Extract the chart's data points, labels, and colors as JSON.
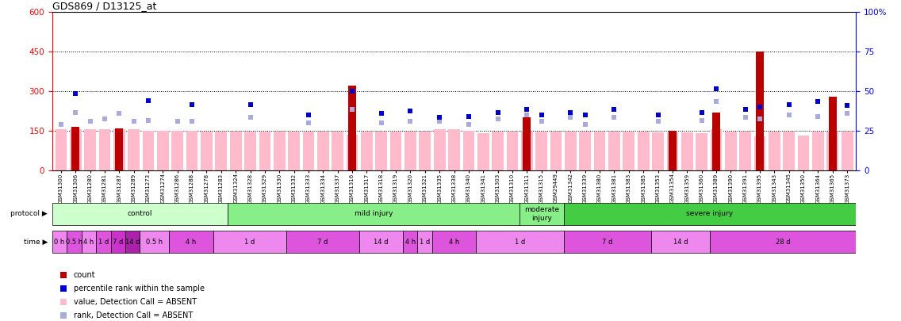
{
  "title": "GDS869 / D13125_at",
  "samples": [
    "GSM31300",
    "GSM31306",
    "GSM31280",
    "GSM31281",
    "GSM31287",
    "GSM31289",
    "GSM31273",
    "GSM31274",
    "GSM31286",
    "GSM31288",
    "GSM31278",
    "GSM31283",
    "GSM31324",
    "GSM31328",
    "GSM31329",
    "GSM31330",
    "GSM31332",
    "GSM31333",
    "GSM31334",
    "GSM31337",
    "GSM31316",
    "GSM31317",
    "GSM31318",
    "GSM31319",
    "GSM31320",
    "GSM31321",
    "GSM31335",
    "GSM31338",
    "GSM31340",
    "GSM31341",
    "GSM31303",
    "GSM31310",
    "GSM31311",
    "GSM31315",
    "GSM29449",
    "GSM31342",
    "GSM31339",
    "GSM31380",
    "GSM31381",
    "GSM31383",
    "GSM31385",
    "GSM31353",
    "GSM31354",
    "GSM31359",
    "GSM31360",
    "GSM31389",
    "GSM31390",
    "GSM31391",
    "GSM31395",
    "GSM31343",
    "GSM31345",
    "GSM31350",
    "GSM31364",
    "GSM31365",
    "GSM31373"
  ],
  "count_values": [
    0,
    165,
    0,
    0,
    160,
    0,
    0,
    0,
    0,
    0,
    0,
    0,
    0,
    0,
    0,
    0,
    0,
    0,
    0,
    0,
    320,
    0,
    0,
    0,
    0,
    0,
    0,
    0,
    0,
    0,
    0,
    0,
    200,
    0,
    0,
    0,
    0,
    0,
    0,
    0,
    0,
    0,
    150,
    0,
    0,
    220,
    0,
    0,
    450,
    0,
    0,
    0,
    0,
    280,
    0
  ],
  "percentile_values": [
    0,
    290,
    0,
    0,
    0,
    0,
    265,
    0,
    0,
    250,
    0,
    0,
    0,
    250,
    0,
    0,
    0,
    210,
    0,
    0,
    300,
    0,
    215,
    0,
    225,
    0,
    200,
    0,
    205,
    0,
    220,
    0,
    230,
    210,
    0,
    220,
    210,
    0,
    230,
    0,
    0,
    210,
    0,
    0,
    220,
    310,
    0,
    230,
    240,
    0,
    250,
    0,
    260,
    0,
    245
  ],
  "pink_bar_values": [
    155,
    155,
    155,
    155,
    155,
    155,
    150,
    150,
    150,
    150,
    148,
    148,
    148,
    148,
    148,
    148,
    148,
    148,
    148,
    148,
    135,
    148,
    148,
    148,
    148,
    148,
    155,
    155,
    150,
    140,
    148,
    148,
    148,
    148,
    148,
    148,
    148,
    148,
    148,
    148,
    148,
    145,
    145,
    145,
    140,
    155,
    148,
    148,
    130,
    148,
    148,
    132,
    148,
    148,
    148
  ],
  "light_blue_sq_values": [
    175,
    220,
    185,
    195,
    215,
    185,
    190,
    0,
    185,
    185,
    0,
    0,
    0,
    200,
    0,
    0,
    0,
    180,
    0,
    0,
    230,
    0,
    180,
    0,
    185,
    0,
    185,
    0,
    175,
    0,
    195,
    0,
    210,
    185,
    0,
    200,
    175,
    0,
    200,
    0,
    0,
    185,
    0,
    0,
    190,
    260,
    0,
    200,
    195,
    0,
    210,
    0,
    205,
    0,
    215
  ],
  "protocol_groups": [
    {
      "label": "control",
      "start": 0,
      "end": 12,
      "color": "#ccffcc"
    },
    {
      "label": "mild injury",
      "start": 12,
      "end": 32,
      "color": "#88ee88"
    },
    {
      "label": "moderate\ninjury",
      "start": 32,
      "end": 35,
      "color": "#88ee88"
    },
    {
      "label": "severe injury",
      "start": 35,
      "end": 55,
      "color": "#44cc44"
    }
  ],
  "time_groups": [
    {
      "label": "0 h",
      "start": 0,
      "end": 1,
      "color": "#ee88ee"
    },
    {
      "label": "0.5 h",
      "start": 1,
      "end": 2,
      "color": "#dd55dd"
    },
    {
      "label": "4 h",
      "start": 2,
      "end": 3,
      "color": "#ee88ee"
    },
    {
      "label": "1 d",
      "start": 3,
      "end": 4,
      "color": "#dd55dd"
    },
    {
      "label": "7 d",
      "start": 4,
      "end": 5,
      "color": "#cc33cc"
    },
    {
      "label": "14 d",
      "start": 5,
      "end": 6,
      "color": "#aa22aa"
    },
    {
      "label": "0.5 h",
      "start": 6,
      "end": 8,
      "color": "#ee88ee"
    },
    {
      "label": "4 h",
      "start": 8,
      "end": 11,
      "color": "#dd55dd"
    },
    {
      "label": "1 d",
      "start": 11,
      "end": 16,
      "color": "#ee88ee"
    },
    {
      "label": "7 d",
      "start": 16,
      "end": 21,
      "color": "#dd55dd"
    },
    {
      "label": "14 d",
      "start": 21,
      "end": 24,
      "color": "#ee88ee"
    },
    {
      "label": "4 h",
      "start": 24,
      "end": 25,
      "color": "#dd55dd"
    },
    {
      "label": "1 d",
      "start": 25,
      "end": 26,
      "color": "#ee88ee"
    },
    {
      "label": "4 h",
      "start": 26,
      "end": 29,
      "color": "#dd55dd"
    },
    {
      "label": "1 d",
      "start": 29,
      "end": 35,
      "color": "#ee88ee"
    },
    {
      "label": "7 d",
      "start": 35,
      "end": 41,
      "color": "#dd55dd"
    },
    {
      "label": "14 d",
      "start": 41,
      "end": 45,
      "color": "#ee88ee"
    },
    {
      "label": "28 d",
      "start": 45,
      "end": 55,
      "color": "#dd55dd"
    }
  ],
  "ylim": [
    0,
    600
  ],
  "yticks_left": [
    0,
    150,
    300,
    450,
    600
  ],
  "yticks_right_labels": [
    "0",
    "25",
    "50",
    "75",
    "100%"
  ],
  "hlines": [
    150,
    300,
    450
  ],
  "bar_color_count": "#bb0000",
  "bar_color_pink": "#ffbbcc",
  "sq_color_blue": "#0000cc",
  "sq_color_lightblue": "#aaaadd",
  "legend_items": [
    {
      "color": "#bb0000",
      "marker": "s",
      "label": "count"
    },
    {
      "color": "#0000cc",
      "marker": "s",
      "label": "percentile rank within the sample"
    },
    {
      "color": "#ffbbcc",
      "marker": "s",
      "label": "value, Detection Call = ABSENT"
    },
    {
      "color": "#aaaadd",
      "marker": "s",
      "label": "rank, Detection Call = ABSENT"
    }
  ]
}
